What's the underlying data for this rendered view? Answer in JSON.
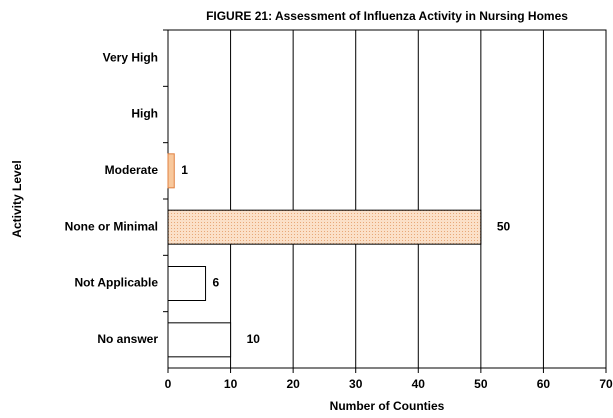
{
  "chart_data": {
    "type": "barh",
    "title": "FIGURE 21: Assessment of Influenza Activity in Nursing Homes",
    "xlabel": "Number of Counties",
    "ylabel": "Activity Level",
    "categories": [
      "Very High",
      "High",
      "Moderate",
      "None or Minimal",
      "Not Applicable",
      "No answer"
    ],
    "values": [
      0,
      0,
      1,
      50,
      6,
      10
    ],
    "colors": [
      "#ffffff",
      "#ffffff",
      "#f8c89c",
      "#fbe0c8",
      "#ffffff",
      "#ffffff"
    ],
    "xlim": [
      0,
      70
    ],
    "xticks": [
      0,
      10,
      20,
      30,
      40,
      50,
      60,
      70
    ],
    "grid": true
  }
}
